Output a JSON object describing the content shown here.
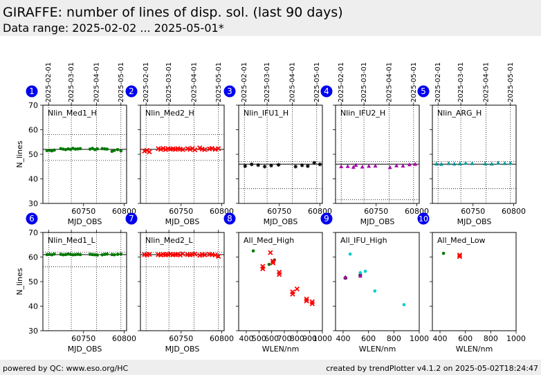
{
  "header": {
    "title": "GIRAFFE: number of lines of disp. sol. (last 90 days)",
    "subtitle": "Data range: 2025-02-02 ... 2025-05-01*"
  },
  "footer": {
    "left": "powered by QC: www.eso.org/HC",
    "right": "created by trendPlotter v4.1.2 on 2025-05-02T18:24:47"
  },
  "colors": {
    "badge": "#0000ee",
    "black": "#000000",
    "red": "#ff0000",
    "green": "#007700",
    "magenta": "#aa00aa",
    "teal": "#009999",
    "cyan": "#00cccc"
  },
  "date_ticks": [
    {
      "label": "2025-02-01",
      "mjd": 60707
    },
    {
      "label": "2025-03-01",
      "mjd": 60735
    },
    {
      "label": "2025-04-01",
      "mjd": 60766
    },
    {
      "label": "2025-05-01",
      "mjd": 60796
    }
  ],
  "chart_data": [
    {
      "id": 1,
      "badge": "1",
      "type": "scatter",
      "label": "Nlin_Med1_H",
      "xlabel": "MJD_OBS",
      "ylabel": "N_lines",
      "xlim": [
        60700,
        60803
      ],
      "ylim": [
        30,
        70
      ],
      "xticks": [
        60750,
        60800
      ],
      "yticks": [
        30,
        40,
        50,
        60,
        70
      ],
      "ref": 52,
      "limits": [
        58,
        47.5
      ],
      "marker": "dot",
      "color": "#007700",
      "x": [
        60705,
        60708,
        60711,
        60714,
        60722,
        60725,
        60728,
        60731,
        60734,
        60737,
        60740,
        60743,
        60746,
        60758,
        60761,
        60764,
        60767,
        60773,
        60776,
        60779,
        60785,
        60788,
        60792,
        60796
      ],
      "y": [
        51.5,
        51.6,
        51.4,
        51.7,
        52.3,
        52.1,
        51.9,
        52.2,
        52.0,
        52.4,
        52.1,
        52.2,
        52.3,
        52.1,
        52.4,
        51.9,
        52.2,
        52.3,
        52.2,
        52.1,
        51.2,
        51.6,
        51.9,
        51.4
      ]
    },
    {
      "id": 2,
      "badge": "2",
      "type": "scatter",
      "label": "Nlin_Med2_H",
      "xlabel": "MJD_OBS",
      "ylabel": "",
      "xlim": [
        60700,
        60803
      ],
      "ylim": [
        30,
        70
      ],
      "xticks": [
        60750,
        60800
      ],
      "yticks": [
        30,
        40,
        50,
        60,
        70
      ],
      "ref": 52,
      "limits": [
        58,
        47.5
      ],
      "marker": "x",
      "color": "#ff0000",
      "x": [
        60705,
        60708,
        60711,
        60722,
        60725,
        60728,
        60731,
        60734,
        60737,
        60740,
        60743,
        60746,
        60749,
        60752,
        60758,
        60761,
        60764,
        60767,
        60773,
        60776,
        60779,
        60785,
        60788,
        60792,
        60796
      ],
      "y": [
        51.3,
        51.6,
        51.0,
        52.3,
        52.0,
        52.4,
        51.9,
        52.3,
        52.1,
        52.2,
        52.0,
        52.3,
        52.1,
        51.9,
        52.3,
        52.0,
        52.4,
        51.8,
        52.6,
        52.1,
        51.9,
        52.2,
        52.4,
        52.0,
        52.3
      ]
    },
    {
      "id": 3,
      "badge": "3",
      "type": "scatter",
      "label": "Nlin_IFU1_H",
      "xlabel": "MJD_OBS",
      "ylabel": "",
      "xlim": [
        60700,
        60803
      ],
      "ylim": [
        30,
        70
      ],
      "xticks": [
        60750,
        60800
      ],
      "yticks": [
        30,
        40,
        50,
        60,
        70
      ],
      "ref": 46,
      "limits": [
        47,
        36
      ],
      "marker": "star",
      "color": "#000000",
      "x": [
        60708,
        60716,
        60724,
        60732,
        60740,
        60749,
        60770,
        60778,
        60785,
        60793,
        60800
      ],
      "y": [
        45.2,
        45.9,
        45.6,
        45.0,
        45.4,
        45.7,
        45.0,
        45.5,
        45.2,
        46.5,
        45.9
      ]
    },
    {
      "id": 4,
      "badge": "4",
      "type": "scatter",
      "label": "Nlin_IFU2_H",
      "xlabel": "MJD_OBS",
      "ylabel": "",
      "xlim": [
        60700,
        60803
      ],
      "ylim": [
        30,
        70
      ],
      "xticks": [
        60750,
        60800
      ],
      "yticks": [
        30,
        40,
        50,
        60,
        70
      ],
      "ref": 46,
      "limits": [
        47,
        31.5
      ],
      "marker": "tri",
      "color": "#aa00aa",
      "x": [
        60707,
        60715,
        60722,
        60725,
        60733,
        60741,
        60749,
        60767,
        60775,
        60783,
        60791,
        60798
      ],
      "y": [
        45.0,
        45.1,
        44.8,
        45.6,
        44.9,
        45.2,
        45.3,
        44.7,
        45.4,
        45.3,
        45.8,
        46.0
      ]
    },
    {
      "id": 5,
      "badge": "5",
      "type": "scatter",
      "label": "Nlin_ARG_H",
      "xlabel": "MJD_OBS",
      "ylabel": "",
      "xlim": [
        60700,
        60803
      ],
      "ylim": [
        30,
        70
      ],
      "xticks": [
        60750,
        60800
      ],
      "yticks": [
        30,
        40,
        50,
        60,
        70
      ],
      "ref": 46,
      "limits": [
        47,
        36
      ],
      "marker": "tri",
      "color": "#009999",
      "x": [
        60705,
        60711,
        60720,
        60727,
        60734,
        60741,
        60749,
        60765,
        60773,
        60781,
        60789,
        60796
      ],
      "y": [
        46.1,
        46.0,
        46.3,
        46.1,
        46.2,
        46.4,
        46.3,
        46.2,
        46.1,
        46.5,
        46.3,
        46.4
      ]
    },
    {
      "id": 6,
      "badge": "6",
      "type": "scatter",
      "label": "Nlin_Med1_L",
      "xlabel": "MJD_OBS",
      "ylabel": "N_lines",
      "xlim": [
        60700,
        60803
      ],
      "ylim": [
        30,
        70
      ],
      "xticks": [
        60750,
        60800
      ],
      "yticks": [
        30,
        40,
        50,
        60,
        70
      ],
      "ref": 61,
      "limits": [
        62,
        56
      ],
      "marker": "dot",
      "color": "#007700",
      "x": [
        60705,
        60708,
        60711,
        60714,
        60722,
        60725,
        60728,
        60731,
        60734,
        60737,
        60740,
        60743,
        60746,
        60758,
        60761,
        60764,
        60767,
        60773,
        60776,
        60779,
        60785,
        60788,
        60792,
        60796
      ],
      "y": [
        61.0,
        61.1,
        60.9,
        61.2,
        61.1,
        60.9,
        61.0,
        61.2,
        61.1,
        60.9,
        61.0,
        61.1,
        61.0,
        61.1,
        61.0,
        60.9,
        60.8,
        60.9,
        61.1,
        61.2,
        61.0,
        60.9,
        61.1,
        61.2
      ]
    },
    {
      "id": 7,
      "badge": "7",
      "type": "scatter",
      "label": "Nlin_Med2_L",
      "xlabel": "MJD_OBS",
      "ylabel": "",
      "xlim": [
        60700,
        60803
      ],
      "ylim": [
        30,
        70
      ],
      "xticks": [
        60750,
        60800
      ],
      "yticks": [
        30,
        40,
        50,
        60,
        70
      ],
      "ref": 61,
      "limits": [
        62,
        56
      ],
      "marker": "x",
      "color": "#ff0000",
      "x": [
        60705,
        60708,
        60711,
        60722,
        60725,
        60728,
        60731,
        60734,
        60737,
        60740,
        60743,
        60746,
        60749,
        60752,
        60758,
        60761,
        60764,
        60767,
        60773,
        60776,
        60779,
        60785,
        60788,
        60792,
        60796
      ],
      "y": [
        61.0,
        60.9,
        61.1,
        61.0,
        60.8,
        61.1,
        60.9,
        61.0,
        61.2,
        60.9,
        61.0,
        61.1,
        60.8,
        61.3,
        61.0,
        60.9,
        61.1,
        61.2,
        60.7,
        61.0,
        60.9,
        61.1,
        61.0,
        60.8,
        60.3
      ]
    },
    {
      "id": 8,
      "badge": "8",
      "type": "scatter",
      "label": "All_Med_High",
      "xlabel": "WLEN/nm",
      "ylabel": "",
      "xlim": [
        340,
        1000
      ],
      "ylim": [
        30,
        70
      ],
      "xticks": [
        400,
        500,
        600,
        700,
        800,
        900,
        1000
      ],
      "yticks": [
        30,
        40,
        50,
        60,
        70
      ],
      "ref": null,
      "limits": [],
      "groups": [
        {
          "marker": "dot",
          "color": "#007700",
          "x": [
            455,
            530,
            580,
            622
          ],
          "y": [
            62.5,
            55.5,
            57.0,
            58.8
          ]
        },
        {
          "marker": "x",
          "color": "#ff0000",
          "x": [
            530,
            530,
            590,
            610,
            610,
            660,
            660,
            765,
            765,
            800,
            875,
            875,
            920,
            920
          ],
          "y": [
            56.2,
            55.2,
            61.8,
            58.3,
            57.6,
            53.8,
            52.9,
            45.8,
            44.9,
            47.0,
            42.9,
            42.1,
            41.8,
            41.0
          ]
        }
      ]
    },
    {
      "id": 9,
      "badge": "9",
      "type": "scatter",
      "label": "All_IFU_High",
      "xlabel": "WLEN/nm",
      "ylabel": "",
      "xlim": [
        340,
        1000
      ],
      "ylim": [
        30,
        70
      ],
      "xticks": [
        400,
        600,
        800,
        1000
      ],
      "yticks": [
        30,
        40,
        50,
        60,
        70
      ],
      "ref": null,
      "limits": [],
      "groups": [
        {
          "marker": "star",
          "color": "#000000",
          "x": [
            418,
            535
          ],
          "y": [
            51.5,
            52.6
          ]
        },
        {
          "marker": "tri",
          "color": "#aa00aa",
          "x": [
            418,
            535
          ],
          "y": [
            51.8,
            52.3
          ]
        },
        {
          "marker": "dot",
          "color": "#00cccc",
          "x": [
            455,
            535,
            575,
            650,
            880
          ],
          "y": [
            61.2,
            53.6,
            54.2,
            46.2,
            40.6
          ]
        }
      ]
    },
    {
      "id": 10,
      "badge": "10",
      "type": "scatter",
      "label": "All_Med_Low",
      "xlabel": "WLEN/nm",
      "ylabel": "",
      "xlim": [
        340,
        1000
      ],
      "ylim": [
        30,
        70
      ],
      "xticks": [
        400,
        600,
        800,
        1000
      ],
      "yticks": [
        30,
        40,
        50,
        60,
        70
      ],
      "ref": null,
      "limits": [],
      "groups": [
        {
          "marker": "dot",
          "color": "#007700",
          "x": [
            428
          ],
          "y": [
            61.5
          ]
        },
        {
          "marker": "x",
          "color": "#ff0000",
          "x": [
            555,
            555
          ],
          "y": [
            60.8,
            60.2
          ]
        }
      ]
    }
  ]
}
